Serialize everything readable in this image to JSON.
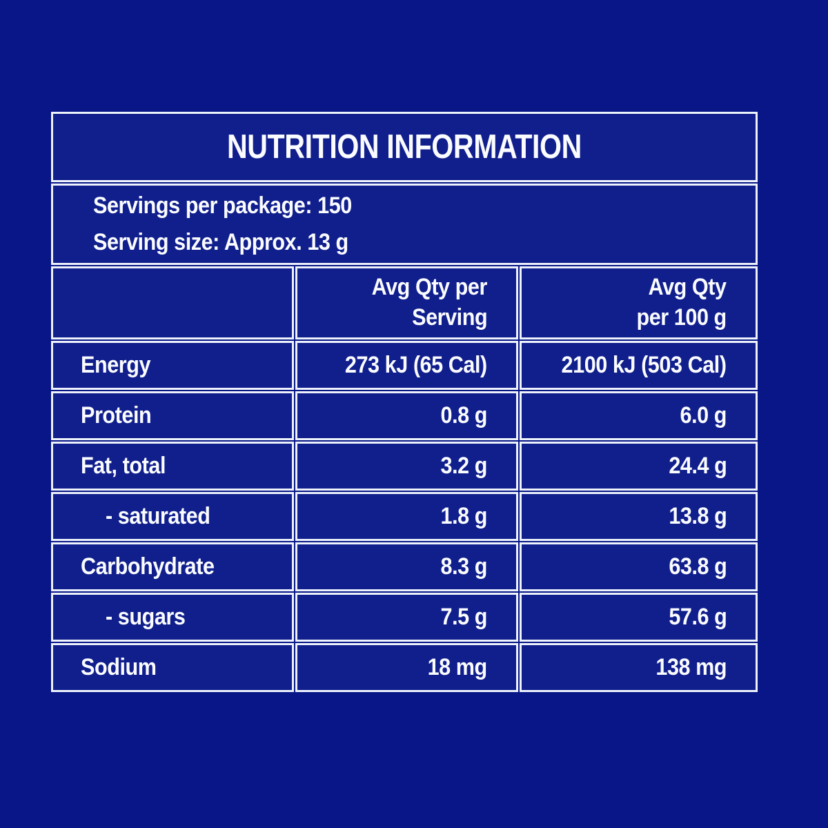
{
  "title": "NUTRITION INFORMATION",
  "serving_info": {
    "servings_per_package": "Servings per package: 150",
    "serving_size": "Serving size: Approx. 13 g"
  },
  "columns": {
    "per_serving": {
      "line1": "Avg Qty per",
      "line2": "Serving"
    },
    "per_100g": {
      "line1": "Avg Qty",
      "line2": "per 100 g"
    }
  },
  "rows": [
    {
      "label": "Energy",
      "per_serving": "273 kJ (65 Cal)",
      "per_100g": "2100 kJ (503 Cal)"
    },
    {
      "label": "Protein",
      "per_serving": "0.8 g",
      "per_100g": "6.0 g"
    },
    {
      "label": "Fat, total",
      "per_serving": "3.2 g",
      "per_100g": "24.4 g"
    },
    {
      "label": "- saturated",
      "per_serving": "1.8 g",
      "per_100g": "13.8 g"
    },
    {
      "label": "Carbohydrate",
      "per_serving": "8.3 g",
      "per_100g": "63.8 g"
    },
    {
      "label": "- sugars",
      "per_serving": "7.5 g",
      "per_100g": "57.6 g"
    },
    {
      "label": "Sodium",
      "per_serving": "18 mg",
      "per_100g": "138 mg"
    }
  ],
  "colors": {
    "bg": "#081687",
    "cell": "#111f8c",
    "border": "#edf2fb",
    "text": "#fafcff"
  }
}
